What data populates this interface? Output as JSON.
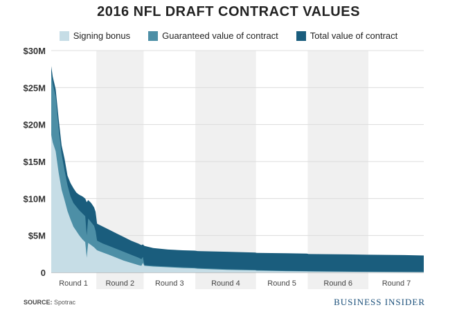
{
  "chart_data": {
    "type": "area",
    "title": "2016 NFL DRAFT CONTRACT VALUES",
    "xlabel": "",
    "ylabel": "",
    "ylim": [
      0,
      30
    ],
    "y_ticks": [
      0,
      5,
      10,
      15,
      20,
      25,
      30
    ],
    "y_tick_labels": [
      "0",
      "$5M",
      "$10M",
      "$15M",
      "$20M",
      "$25M",
      "$30M"
    ],
    "x_rounds": [
      "Round 1",
      "Round 2",
      "Round 3",
      "Round 4",
      "Round 5",
      "Round 6",
      "Round 7"
    ],
    "x_unit": "pick number",
    "round_ranges": [
      [
        1,
        31
      ],
      [
        32,
        63
      ],
      [
        64,
        98
      ],
      [
        99,
        139
      ],
      [
        140,
        174
      ],
      [
        175,
        215
      ],
      [
        216,
        253
      ]
    ],
    "grid": true,
    "legend_position": "top",
    "colors": {
      "signing_bonus": "#c6dde6",
      "guaranteed": "#4d8fa6",
      "total": "#1a5d7d",
      "band": "#f0f0f0"
    },
    "series": [
      {
        "name": "Signing bonus",
        "x": [
          1,
          2,
          4,
          6,
          8,
          10,
          12,
          14,
          16,
          18,
          20,
          22,
          24,
          25,
          26,
          28,
          30,
          31,
          32,
          36,
          40,
          45,
          50,
          55,
          60,
          62,
          63,
          64,
          70,
          80,
          90,
          98,
          100,
          120,
          139,
          140,
          160,
          174,
          175,
          200,
          215,
          216,
          240,
          253
        ],
        "values": [
          18.6,
          17.6,
          16.4,
          13.5,
          11.2,
          9.8,
          8.3,
          7.2,
          6.2,
          5.6,
          5.0,
          4.5,
          4.1,
          2.0,
          4.0,
          3.7,
          3.4,
          3.2,
          3.0,
          2.7,
          2.4,
          2.0,
          1.6,
          1.3,
          1.0,
          0.9,
          1.3,
          0.9,
          0.8,
          0.7,
          0.6,
          0.55,
          0.5,
          0.35,
          0.28,
          0.25,
          0.18,
          0.15,
          0.14,
          0.1,
          0.08,
          0.08,
          0.06,
          0.05
        ]
      },
      {
        "name": "Guaranteed value of contract",
        "x": [
          1,
          2,
          4,
          6,
          8,
          10,
          12,
          14,
          16,
          18,
          20,
          22,
          24,
          25,
          26,
          28,
          30,
          31,
          32,
          36,
          40,
          45,
          50,
          55,
          60,
          62,
          63,
          64,
          70,
          80,
          90,
          98,
          100,
          120,
          139,
          140,
          160,
          174,
          175,
          200,
          215,
          216,
          240,
          253
        ],
        "values": [
          27.0,
          25.5,
          23.8,
          19.5,
          16.0,
          13.8,
          11.8,
          10.3,
          9.4,
          8.9,
          8.4,
          8.0,
          7.6,
          5.0,
          7.3,
          6.8,
          6.3,
          5.6,
          4.3,
          3.9,
          3.6,
          3.2,
          2.8,
          2.4,
          2.0,
          1.8,
          2.1,
          1.0,
          0.9,
          0.8,
          0.7,
          0.65,
          0.6,
          0.45,
          0.35,
          0.3,
          0.22,
          0.18,
          0.17,
          0.12,
          0.1,
          0.1,
          0.08,
          0.07
        ]
      },
      {
        "name": "Total value of contract",
        "x": [
          1,
          2,
          4,
          6,
          8,
          10,
          12,
          14,
          16,
          18,
          20,
          22,
          24,
          25,
          26,
          28,
          30,
          31,
          32,
          36,
          40,
          45,
          50,
          55,
          60,
          62,
          63,
          64,
          70,
          80,
          90,
          98,
          100,
          120,
          139,
          140,
          160,
          174,
          175,
          200,
          215,
          216,
          240,
          253
        ],
        "values": [
          27.9,
          26.5,
          24.8,
          20.8,
          17.2,
          15.4,
          13.1,
          12.1,
          11.4,
          10.8,
          10.5,
          10.3,
          10.0,
          9.5,
          9.8,
          9.4,
          8.8,
          8.2,
          6.6,
          6.2,
          5.8,
          5.3,
          4.8,
          4.3,
          3.9,
          3.7,
          3.8,
          3.6,
          3.3,
          3.1,
          3.0,
          2.95,
          2.9,
          2.8,
          2.7,
          2.65,
          2.6,
          2.55,
          2.5,
          2.45,
          2.4,
          2.4,
          2.35,
          2.3
        ]
      }
    ]
  },
  "footer": {
    "source_label": "SOURCE:",
    "source_value": "Spotrac",
    "brand": "BUSINESS INSIDER"
  }
}
